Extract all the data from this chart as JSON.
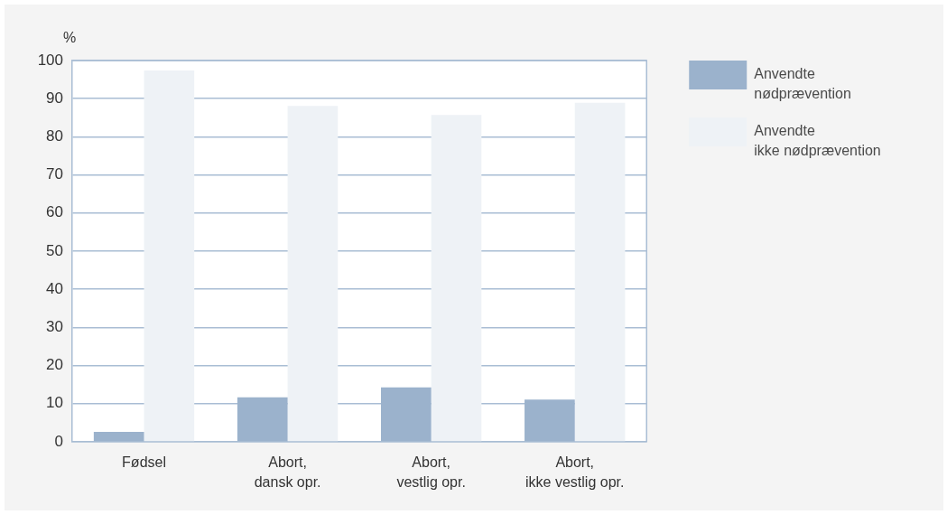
{
  "chart_data": {
    "type": "bar",
    "ylabel": "%",
    "categories": [
      "Fødsel",
      "Abort, dansk opr.",
      "Abort, vestlig opr.",
      "Abort, ikke vestlig opr."
    ],
    "series": [
      {
        "name": "Anvendte nødprævention",
        "color": "#9bb2cc",
        "values": [
          2.6,
          11.7,
          14.3,
          11.1
        ]
      },
      {
        "name": "Anvendte ikke nødprævention",
        "color": "#eef2f6",
        "values": [
          97.4,
          88.1,
          85.7,
          88.9
        ]
      }
    ],
    "ylim": [
      0,
      100
    ],
    "yticks": [
      0,
      10,
      20,
      30,
      40,
      50,
      60,
      70,
      80,
      90,
      100
    ],
    "grid": "y",
    "legend": "right"
  }
}
